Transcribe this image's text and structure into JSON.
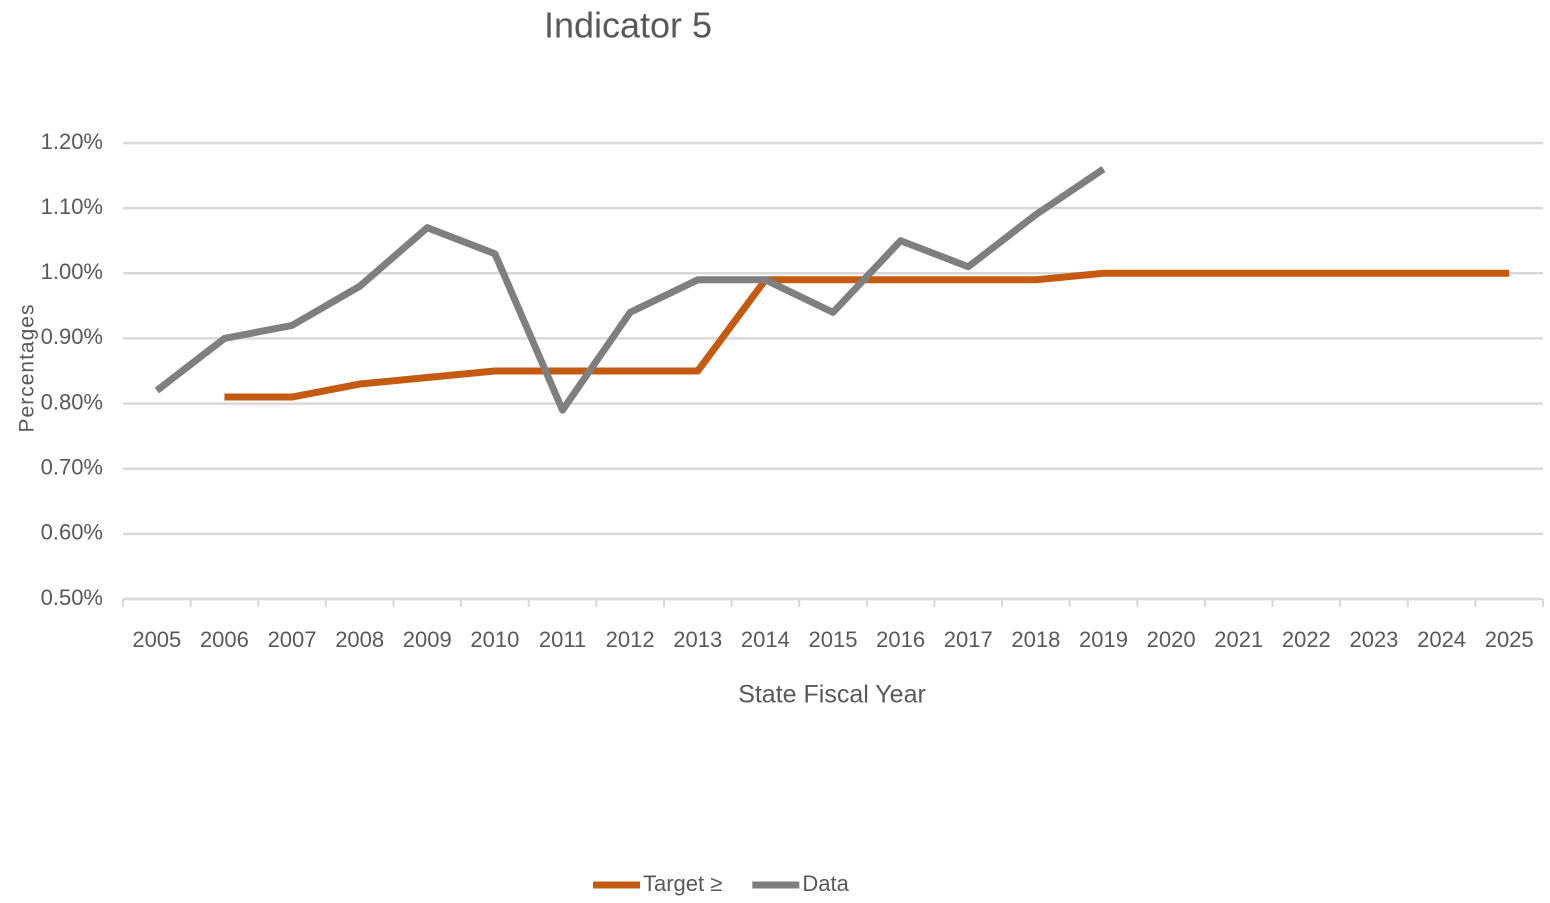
{
  "chart_data": {
    "type": "line",
    "title": "Indicator 5",
    "x_label": "State Fiscal Year",
    "y_label": "Percentages",
    "categories": [
      "2005",
      "2006",
      "2007",
      "2008",
      "2009",
      "2010",
      "2011",
      "2012",
      "2013",
      "2014",
      "2015",
      "2016",
      "2017",
      "2018",
      "2019",
      "2020",
      "2021",
      "2022",
      "2023",
      "2024",
      "2025"
    ],
    "series": [
      {
        "name": "Target ≥",
        "color": "#c55a11",
        "values": [
          null,
          0.81,
          0.81,
          0.83,
          0.84,
          0.85,
          0.85,
          0.85,
          0.85,
          0.99,
          0.99,
          0.99,
          0.99,
          0.99,
          1.0,
          1.0,
          1.0,
          1.0,
          1.0,
          1.0,
          1.0
        ]
      },
      {
        "name": "Data",
        "color": "#7f7f7f",
        "values": [
          0.82,
          0.9,
          0.92,
          0.98,
          1.07,
          1.03,
          0.79,
          0.94,
          0.99,
          0.99,
          0.94,
          1.05,
          1.01,
          1.09,
          1.16,
          null,
          null,
          null,
          null,
          null,
          null
        ]
      }
    ],
    "ylim": [
      0.5,
      1.2
    ],
    "yticks": [
      {
        "value": 0.5,
        "label": "0.50%"
      },
      {
        "value": 0.6,
        "label": "0.60%"
      },
      {
        "value": 0.7,
        "label": "0.70%"
      },
      {
        "value": 0.8,
        "label": "0.80%"
      },
      {
        "value": 0.9,
        "label": "0.90%"
      },
      {
        "value": 1.0,
        "label": "1.00%"
      },
      {
        "value": 1.1,
        "label": "1.10%"
      },
      {
        "value": 1.2,
        "label": "1.20%"
      }
    ],
    "grid": true,
    "legend": "bottom"
  }
}
